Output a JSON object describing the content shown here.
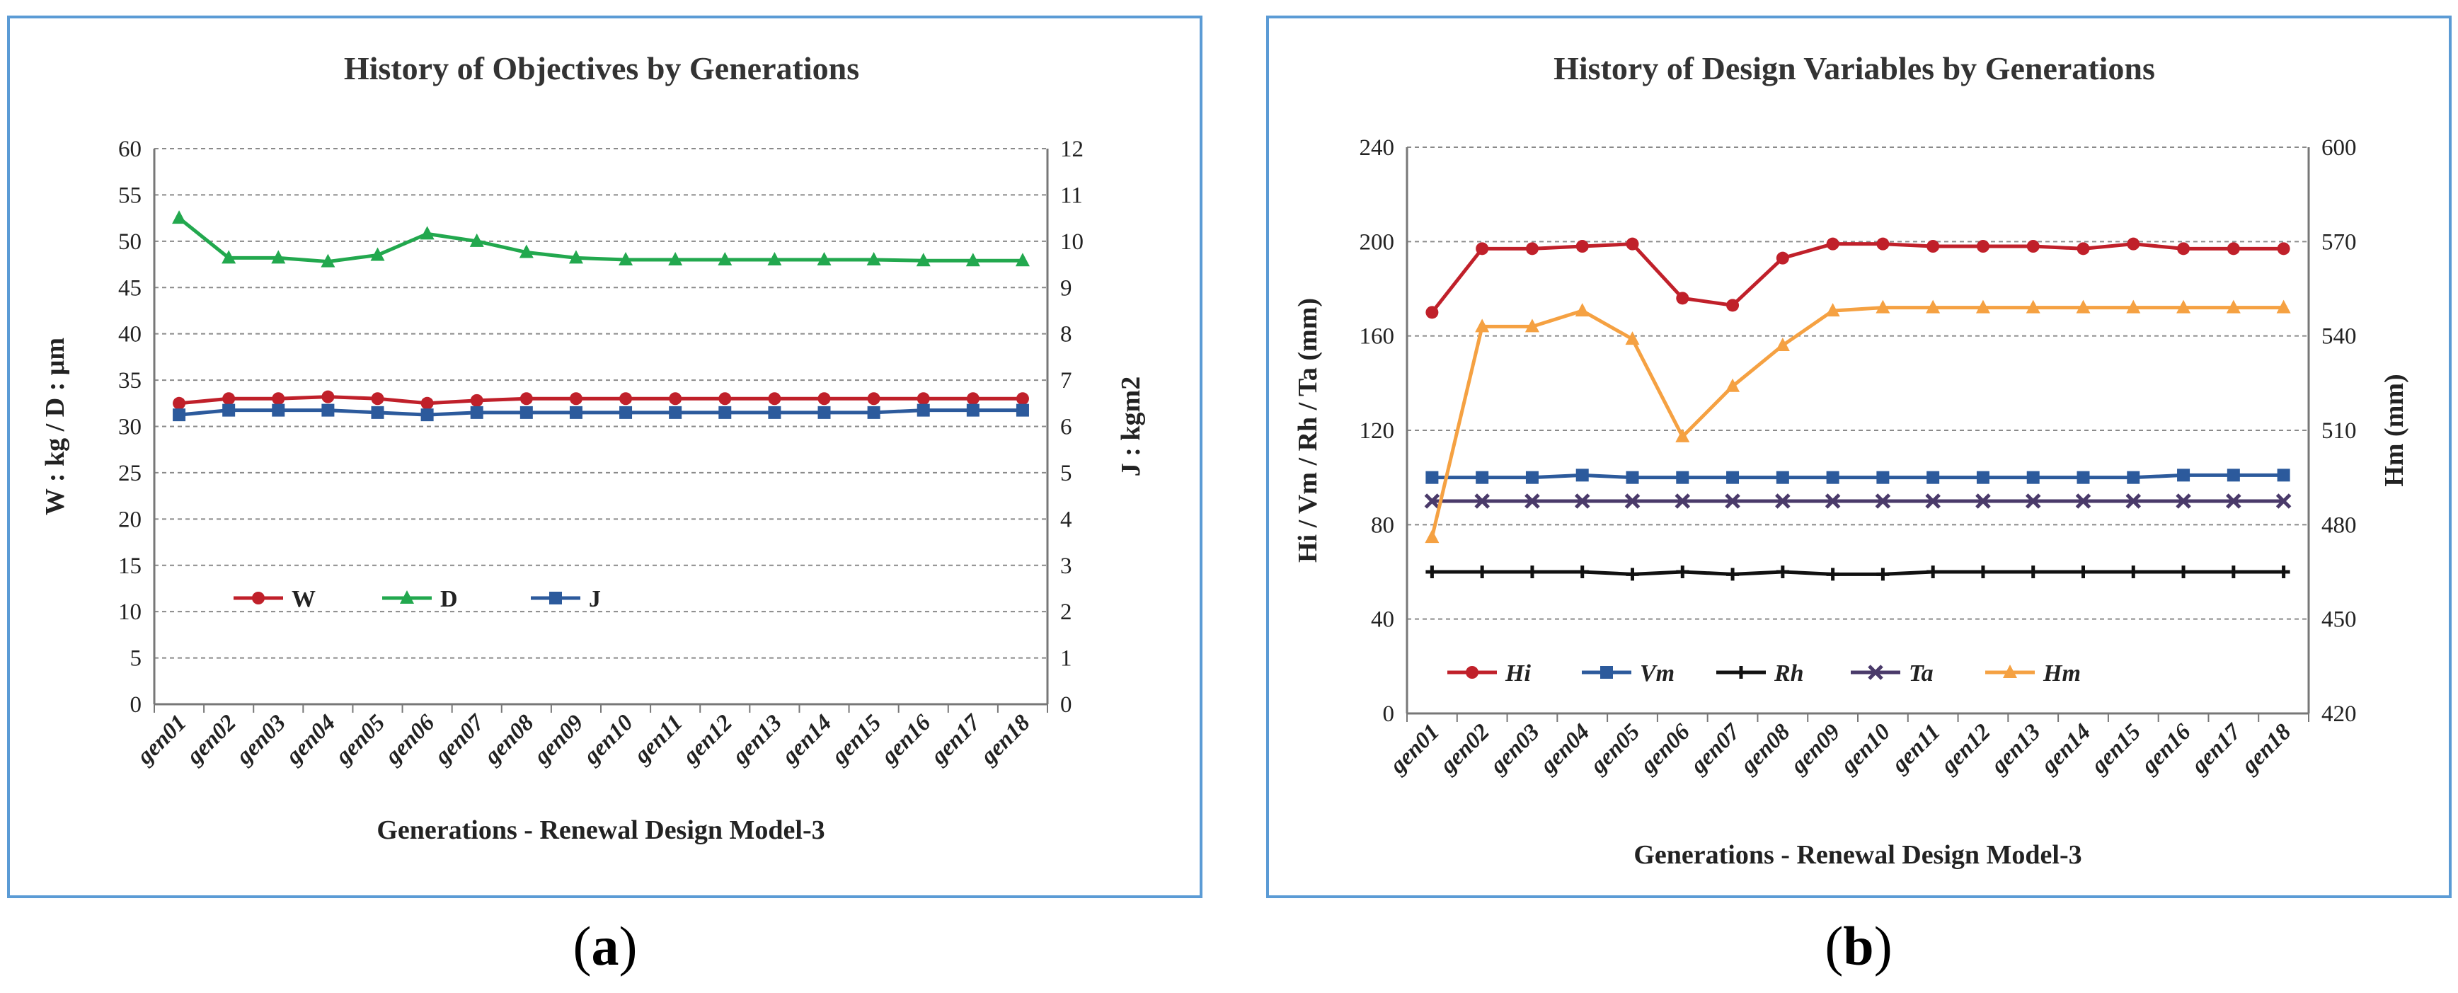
{
  "captions": {
    "a": "(a)",
    "a_letter": "a",
    "b": "(b)",
    "b_letter": "b"
  },
  "chart_data": [
    {
      "type": "line",
      "title": "History of Objectives by Generations",
      "xlabel": "Generations - Renewal Design Model-3",
      "ylabel": "W : kg  /  D : μm",
      "y2label": "J : kgm2",
      "categories": [
        "gen01",
        "gen02",
        "gen03",
        "gen04",
        "gen05",
        "gen06",
        "gen07",
        "gen08",
        "gen09",
        "gen10",
        "gen11",
        "gen12",
        "gen13",
        "gen14",
        "gen15",
        "gen16",
        "gen17",
        "gen18"
      ],
      "ylim": [
        0,
        60
      ],
      "yticks": [
        0,
        5,
        10,
        15,
        20,
        25,
        30,
        35,
        40,
        45,
        50,
        55,
        60
      ],
      "y2lim": [
        0,
        12
      ],
      "y2ticks": [
        0,
        1,
        2,
        3,
        4,
        5,
        6,
        7,
        8,
        9,
        10,
        11,
        12
      ],
      "grid": true,
      "legend_position": "lower-left",
      "series": [
        {
          "name": "W",
          "axis": "left",
          "color": "#c0202a",
          "marker": "circle",
          "values": [
            32.5,
            33.0,
            33.0,
            33.2,
            33.0,
            32.5,
            32.8,
            33.0,
            33.0,
            33.0,
            33.0,
            33.0,
            33.0,
            33.0,
            33.0,
            33.0,
            33.0,
            33.0
          ]
        },
        {
          "name": "D",
          "axis": "left",
          "color": "#22a84e",
          "marker": "triangle",
          "values": [
            52.5,
            48.2,
            48.2,
            47.8,
            48.5,
            50.8,
            50.0,
            48.8,
            48.2,
            48.0,
            48.0,
            48.0,
            48.0,
            48.0,
            48.0,
            47.9,
            47.9,
            47.9
          ]
        },
        {
          "name": "J",
          "axis": "right",
          "color": "#2c5a9c",
          "marker": "square",
          "values": [
            6.25,
            6.35,
            6.35,
            6.35,
            6.3,
            6.25,
            6.3,
            6.3,
            6.3,
            6.3,
            6.3,
            6.3,
            6.3,
            6.3,
            6.3,
            6.35,
            6.35,
            6.35
          ]
        }
      ]
    },
    {
      "type": "line",
      "title": "History of Design Variables by Generations",
      "xlabel": "Generations - Renewal Design Model-3",
      "ylabel": "Hi / Vm / Rh / Ta  (mm)",
      "y2label": "Hm (mm)",
      "categories": [
        "gen01",
        "gen02",
        "gen03",
        "gen04",
        "gen05",
        "gen06",
        "gen07",
        "gen08",
        "gen09",
        "gen10",
        "gen11",
        "gen12",
        "gen13",
        "gen14",
        "gen15",
        "gen16",
        "gen17",
        "gen18"
      ],
      "ylim": [
        0,
        240
      ],
      "yticks": [
        0,
        40,
        80,
        120,
        160,
        200,
        240
      ],
      "y2lim": [
        420,
        600
      ],
      "y2ticks": [
        420,
        450,
        480,
        510,
        540,
        570,
        600
      ],
      "grid": true,
      "legend_position": "lower-left",
      "series": [
        {
          "name": "Hi",
          "axis": "left",
          "color": "#c0202a",
          "marker": "circle",
          "values": [
            170,
            197,
            197,
            198,
            199,
            176,
            173,
            193,
            199,
            199,
            198,
            198,
            198,
            197,
            199,
            197,
            197,
            197
          ]
        },
        {
          "name": "Vm",
          "axis": "left",
          "color": "#2c5a9c",
          "marker": "square",
          "values": [
            100,
            100,
            100,
            101,
            100,
            100,
            100,
            100,
            100,
            100,
            100,
            100,
            100,
            100,
            100,
            101,
            101,
            101
          ]
        },
        {
          "name": "Rh",
          "axis": "left",
          "color": "#111111",
          "marker": "plus",
          "values": [
            60,
            60,
            60,
            60,
            59,
            60,
            59,
            60,
            59,
            59,
            60,
            60,
            60,
            60,
            60,
            60,
            60,
            60
          ]
        },
        {
          "name": "Ta",
          "axis": "left",
          "color": "#4a3a6a",
          "marker": "cross",
          "values": [
            90,
            90,
            90,
            90,
            90,
            90,
            90,
            90,
            90,
            90,
            90,
            90,
            90,
            90,
            90,
            90,
            90,
            90
          ]
        },
        {
          "name": "Hm",
          "axis": "right",
          "color": "#f5a142",
          "marker": "triangle",
          "values": [
            476,
            543,
            543,
            548,
            539,
            508,
            524,
            537,
            548,
            549,
            549,
            549,
            549,
            549,
            549,
            549,
            549,
            549
          ]
        }
      ]
    }
  ]
}
